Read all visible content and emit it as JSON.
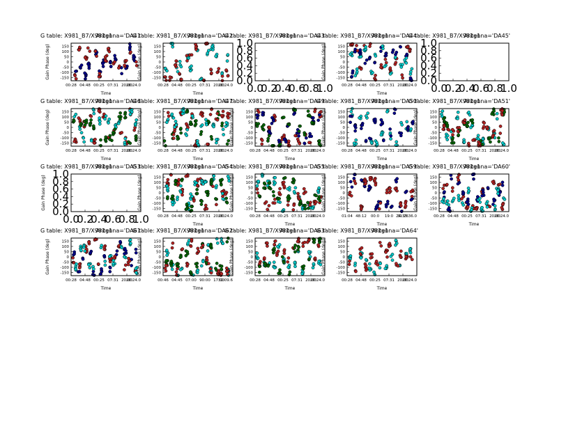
{
  "figure": {
    "title_prefix": "G table: X981_B7/X981g1",
    "xlabel": "Time",
    "ylabel": "Gain Phase (deg)",
    "y_ticks": [
      "150",
      "100",
      "50",
      "0",
      "-50",
      "-100",
      "-150"
    ],
    "empty_ticks": [
      "0.0",
      "0.2",
      "0.4",
      "0.6",
      "0.8",
      "1.0"
    ],
    "colors": {
      "series_a": "#00008b",
      "series_b": "#b22222",
      "series_c": "#006400",
      "series_d": "#00c8c8"
    }
  },
  "chart_data": {
    "type": "scatter",
    "ylim": [
      -180,
      180
    ],
    "panels": [
      {
        "antenna": "Antenna='DA41'",
        "empty": false,
        "x_ticks": [
          "00:28",
          "04:48",
          "00:25",
          "07:31",
          "20:00",
          "26:24.0"
        ],
        "series": [
          {
            "name": "a",
            "color": "#00008b",
            "seed": 11
          },
          {
            "name": "b",
            "color": "#b22222",
            "seed": 12
          }
        ]
      },
      {
        "antenna": "Antenna='DA42'",
        "empty": false,
        "x_ticks": [
          "00:28",
          "04:48",
          "00:25",
          "07:31",
          "20:00",
          "26:24.0"
        ],
        "series": [
          {
            "name": "a",
            "color": "#00c8c8",
            "seed": 21
          },
          {
            "name": "b",
            "color": "#b22222",
            "seed": 22
          }
        ]
      },
      {
        "antenna": "Antenna='DA43'",
        "empty": true
      },
      {
        "antenna": "Antenna='DA44'",
        "empty": false,
        "x_ticks": [
          "00:28",
          "04:48",
          "00:25",
          "07:31",
          "20:00",
          "26:24.0"
        ],
        "series": [
          {
            "name": "a",
            "color": "#00008b",
            "seed": 41
          },
          {
            "name": "b",
            "color": "#b22222",
            "seed": 42
          },
          {
            "name": "c",
            "color": "#00c8c8",
            "seed": 43
          }
        ]
      },
      {
        "antenna": "Antenna='DA45'",
        "empty": true
      },
      {
        "antenna": "Antenna='DA46'",
        "empty": false,
        "x_ticks": [
          "00:28",
          "04:48",
          "00:25",
          "07:31",
          "20:00",
          "26:24.0"
        ],
        "series": [
          {
            "name": "a",
            "color": "#b22222",
            "seed": 61
          },
          {
            "name": "b",
            "color": "#00c8c8",
            "seed": 62
          },
          {
            "name": "c",
            "color": "#006400",
            "seed": 63
          }
        ]
      },
      {
        "antenna": "Antenna='DA47'",
        "empty": false,
        "x_ticks": [
          "00:28",
          "04:48",
          "00:25",
          "07:31",
          "20:00",
          "26:24.0"
        ],
        "series": [
          {
            "name": "a",
            "color": "#006400",
            "seed": 71
          },
          {
            "name": "b",
            "color": "#b22222",
            "seed": 72
          },
          {
            "name": "c",
            "color": "#00c8c8",
            "seed": 73
          }
        ]
      },
      {
        "antenna": "Antenna='DA49'",
        "empty": false,
        "x_ticks": [
          "00:28",
          "04:48",
          "00:25",
          "07:31",
          "20:00",
          "26:24.0"
        ],
        "series": [
          {
            "name": "a",
            "color": "#b22222",
            "seed": 81
          },
          {
            "name": "b",
            "color": "#00008b",
            "seed": 82
          },
          {
            "name": "c",
            "color": "#006400",
            "seed": 83
          }
        ]
      },
      {
        "antenna": "Antenna='DA50'",
        "empty": false,
        "x_ticks": [
          "00:28",
          "04:48",
          "00:25",
          "07:31",
          "20:00",
          "26:24.0"
        ],
        "series": [
          {
            "name": "a",
            "color": "#00c8c8",
            "seed": 91
          },
          {
            "name": "b",
            "color": "#00008b",
            "seed": 92
          }
        ]
      },
      {
        "antenna": "Antenna='DA51'",
        "empty": false,
        "x_ticks": [
          "00:28",
          "04:48",
          "00:25",
          "07:31",
          "20:00",
          "26:24.0"
        ],
        "series": [
          {
            "name": "a",
            "color": "#00c8c8",
            "seed": 101
          },
          {
            "name": "b",
            "color": "#006400",
            "seed": 102
          },
          {
            "name": "c",
            "color": "#b22222",
            "seed": 103
          }
        ]
      },
      {
        "antenna": "Antenna='DA53'",
        "empty": true
      },
      {
        "antenna": "Antenna='DA54'",
        "empty": false,
        "x_ticks": [
          "00:28",
          "04:48",
          "00:25",
          "07:31",
          "20:00",
          "26:24.0"
        ],
        "series": [
          {
            "name": "a",
            "color": "#b22222",
            "seed": 121
          },
          {
            "name": "b",
            "color": "#00c8c8",
            "seed": 122
          },
          {
            "name": "c",
            "color": "#006400",
            "seed": 123
          }
        ]
      },
      {
        "antenna": "Antenna='DA55'",
        "empty": false,
        "x_ticks": [
          "00:28",
          "04:48",
          "00:25",
          "07:31",
          "20:00",
          "26:24.0"
        ],
        "series": [
          {
            "name": "a",
            "color": "#00c8c8",
            "seed": 131
          },
          {
            "name": "b",
            "color": "#b22222",
            "seed": 132
          },
          {
            "name": "c",
            "color": "#006400",
            "seed": 133
          }
        ]
      },
      {
        "antenna": "Antenna='DA59'",
        "empty": false,
        "x_ticks": [
          "01:04",
          "48:12",
          "00:0",
          "19:0",
          "31:26",
          "24:33:36.0"
        ],
        "series": [
          {
            "name": "a",
            "color": "#00008b",
            "seed": 141
          },
          {
            "name": "b",
            "color": "#b22222",
            "seed": 142
          }
        ]
      },
      {
        "antenna": "Antenna='DA60'",
        "empty": false,
        "x_ticks": [
          "00:28",
          "04:48",
          "00:25",
          "07:31",
          "20:00",
          "26:24.0"
        ],
        "series": [
          {
            "name": "a",
            "color": "#b22222",
            "seed": 151
          },
          {
            "name": "b",
            "color": "#00008b",
            "seed": 152
          },
          {
            "name": "c",
            "color": "#00c8c8",
            "seed": 153
          }
        ]
      },
      {
        "antenna": "Antenna='DA61'",
        "empty": false,
        "x_ticks": [
          "00:28",
          "04:48",
          "00:25",
          "07:31",
          "20:00",
          "26:24.0"
        ],
        "series": [
          {
            "name": "a",
            "color": "#00008b",
            "seed": 161
          },
          {
            "name": "b",
            "color": "#b22222",
            "seed": 162
          },
          {
            "name": "c",
            "color": "#00c8c8",
            "seed": 163
          }
        ]
      },
      {
        "antenna": "Antenna='DA62'",
        "empty": false,
        "x_ticks": [
          "00:46",
          "04:45",
          "07:00",
          "90:00",
          "17:00",
          "32:09.6"
        ],
        "series": [
          {
            "name": "a",
            "color": "#00c8c8",
            "seed": 171
          },
          {
            "name": "b",
            "color": "#006400",
            "seed": 172
          },
          {
            "name": "c",
            "color": "#b22222",
            "seed": 173
          }
        ]
      },
      {
        "antenna": "Antenna='DA63'",
        "empty": false,
        "x_ticks": [
          "00:28",
          "04:48",
          "00:25",
          "07:31",
          "20:00",
          "26:24.0"
        ],
        "series": [
          {
            "name": "a",
            "color": "#00c8c8",
            "seed": 181
          },
          {
            "name": "b",
            "color": "#b22222",
            "seed": 182
          },
          {
            "name": "c",
            "color": "#006400",
            "seed": 183
          }
        ]
      },
      {
        "antenna": "Antenna='DA64'",
        "empty": false,
        "x_ticks": [
          "00:28",
          "04:48",
          "00:25",
          "07:31",
          "20:00",
          "26:24.0"
        ],
        "series": [
          {
            "name": "a",
            "color": "#00c8c8",
            "seed": 191
          },
          {
            "name": "b",
            "color": "#b22222",
            "seed": 192
          }
        ]
      }
    ]
  }
}
